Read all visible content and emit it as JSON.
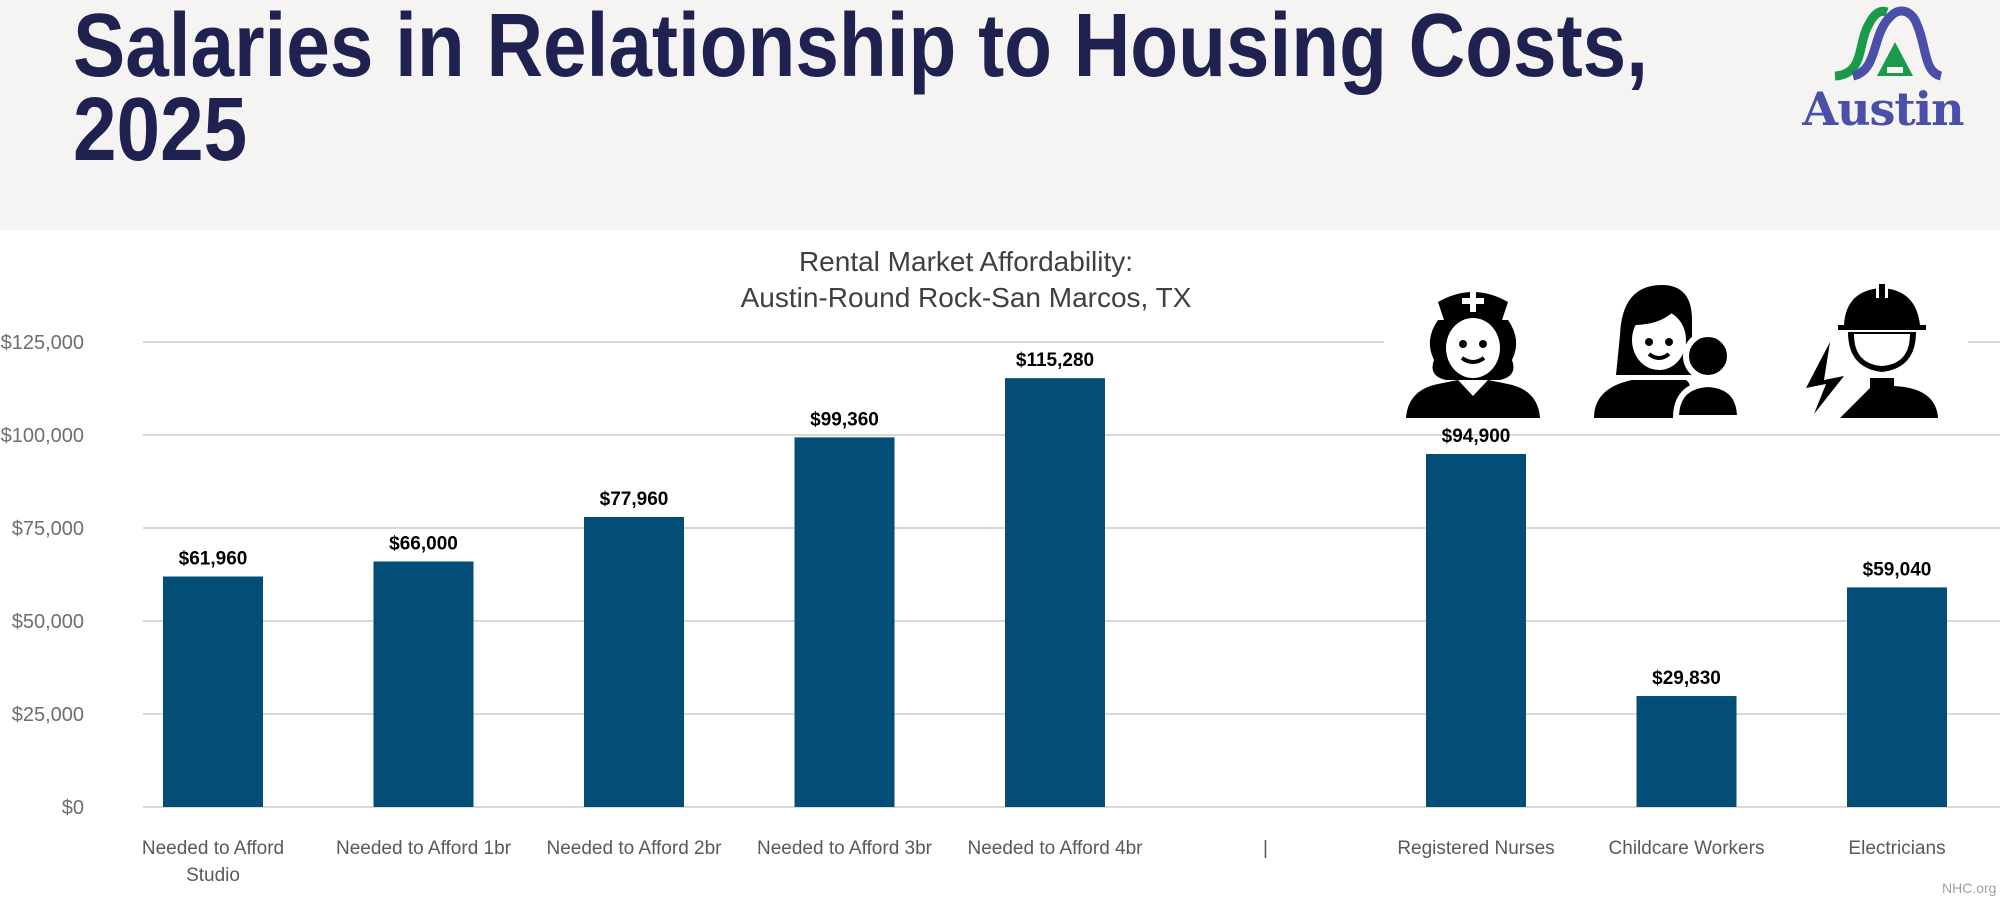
{
  "header": {
    "title": "Salaries in Relationship to Housing Costs,\n2025",
    "logo_text": "Austin",
    "colors": {
      "background": "#f5f4f2",
      "title": "#1f2250",
      "logo_green": "#1a9b4b",
      "logo_blue": "#4a4fa8"
    }
  },
  "icons": [
    {
      "name": "nurse-icon",
      "category": "Registered Nurses"
    },
    {
      "name": "childcare-worker-icon",
      "category": "Childcare Workers"
    },
    {
      "name": "electrician-icon",
      "category": "Electricians"
    }
  ],
  "source": "NHC.org",
  "chart_data": {
    "type": "bar",
    "title": "Rental Market Affordability:\nAustin-Round Rock-San Marcos, TX",
    "categories": [
      "Needed to Afford\nStudio",
      "Needed to Afford 1br",
      "Needed to Afford 2br",
      "Needed to Afford 3br",
      "Needed to Afford 4br",
      "|",
      "Registered Nurses",
      "Childcare Workers",
      "Electricians"
    ],
    "values": [
      61960,
      66000,
      77960,
      99360,
      115280,
      null,
      94900,
      29830,
      59040
    ],
    "data_labels": [
      "$61,960",
      "$66,000",
      "$77,960",
      "$99,360",
      "$115,280",
      "",
      "$94,900",
      "$29,830",
      "$59,040"
    ],
    "yticks": [
      0,
      25000,
      50000,
      75000,
      100000,
      125000
    ],
    "ytick_labels": [
      "$0",
      "$25,000",
      "$50,000",
      "$75,000",
      "$100,000",
      "$125,000"
    ],
    "ylim": [
      0,
      125000
    ],
    "xlabel": "",
    "ylabel": "",
    "grid": true,
    "bar_color": "#024e77",
    "grid_color": "#d9d9d9"
  }
}
